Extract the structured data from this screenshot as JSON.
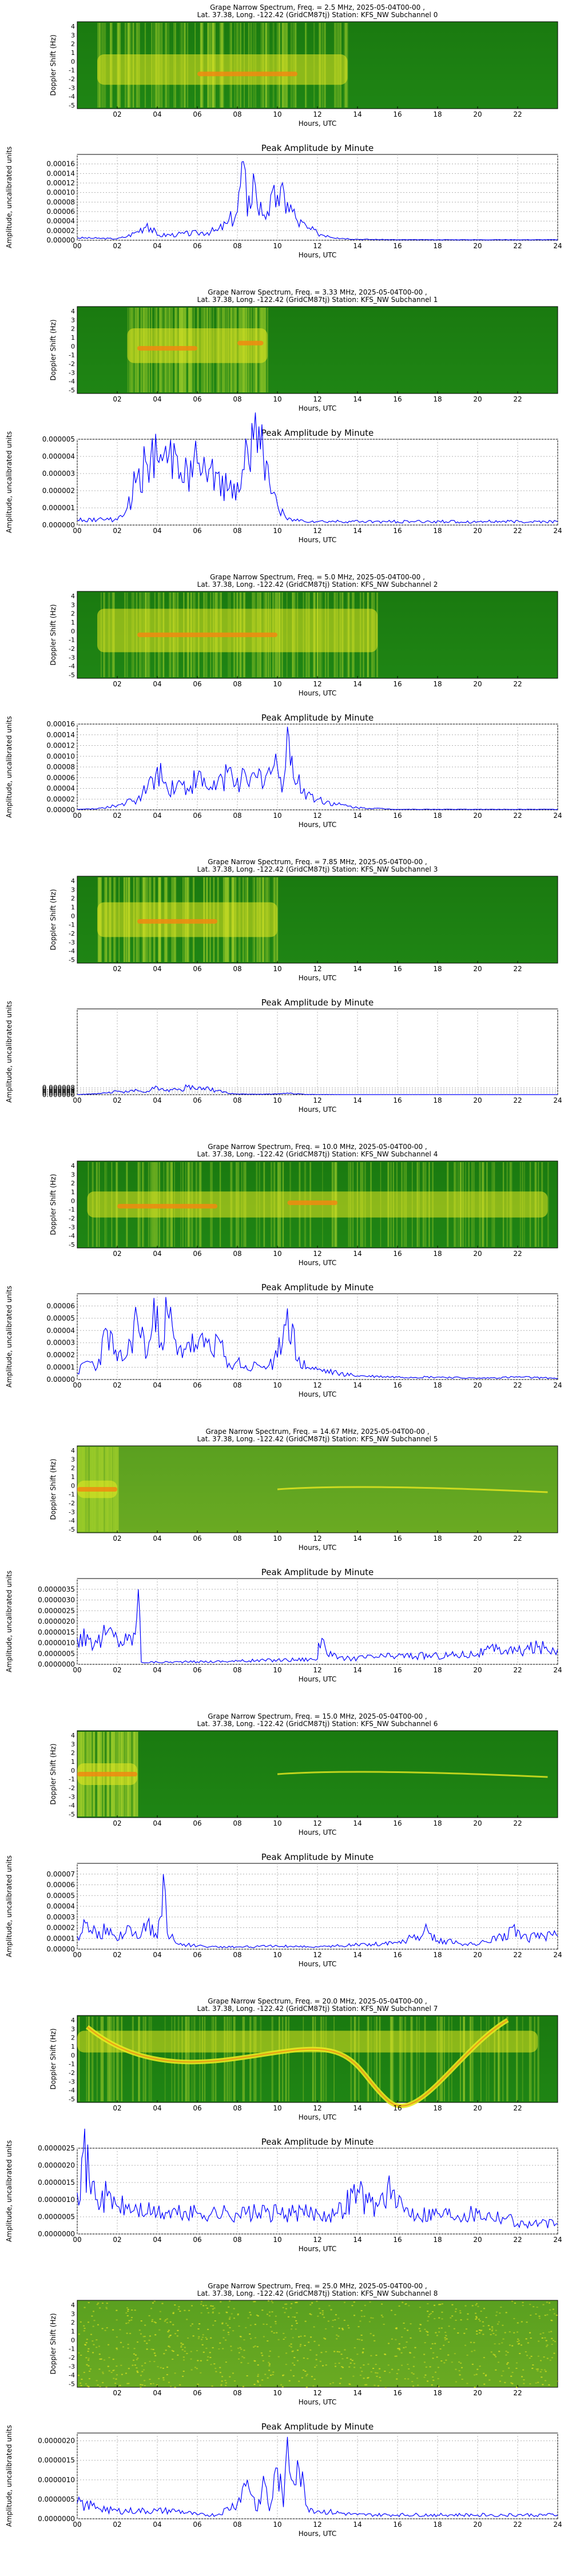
{
  "figure": {
    "spectrogram_title_template": "Grape Narrow Spectrum, Freq. = {freq}, 2025-05-04T00-00 ,",
    "spectrogram_subtitle_template": "Lat.  37.38, Long. -122.42 (GridCM87tj) Station: KFS_NW Subchannel {sub}",
    "amplitude_title": "Peak Amplitude by Minute",
    "xlabel": "Hours, UTC",
    "spectrogram_ylabel": "Doppler Shift (Hz)",
    "amplitude_ylabel": "Amplitude, uncalibrated units",
    "spectrogram_xticks": [
      "02",
      "04",
      "06",
      "08",
      "10",
      "12",
      "14",
      "16",
      "18",
      "20",
      "22"
    ],
    "amplitude_xticks": [
      "00",
      "02",
      "04",
      "06",
      "08",
      "10",
      "12",
      "14",
      "16",
      "18",
      "20",
      "22",
      "24"
    ],
    "spectrogram_yticks": [
      "-5",
      "-4",
      "-3",
      "-2",
      "-1",
      "0",
      "1",
      "2",
      "3",
      "4"
    ],
    "colors": {
      "green": "#1d7f12",
      "yellow": "#e8e820",
      "orange": "#f08a10",
      "line": "#0000ff",
      "grid": "#b0b0b0"
    }
  },
  "panels": [
    {
      "title": "Grape Narrow Spectrum, Freq. = 2.5 MHz, 2025-05-04T00-00 ,",
      "subtitle": "Lat.  37.38, Long. -122.42 (GridCM87tj) Station: KFS_NW Subchannel 0"
    },
    {
      "title": "Grape Narrow Spectrum, Freq. = 3.33 MHz, 2025-05-04T00-00 ,",
      "subtitle": "Lat.  37.38, Long. -122.42 (GridCM87tj) Station: KFS_NW Subchannel 1"
    },
    {
      "title": "Grape Narrow Spectrum, Freq. = 5.0 MHz, 2025-05-04T00-00 ,",
      "subtitle": "Lat.  37.38, Long. -122.42 (GridCM87tj) Station: KFS_NW Subchannel 2"
    },
    {
      "title": "Grape Narrow Spectrum, Freq. = 7.85 MHz, 2025-05-04T00-00 ,",
      "subtitle": "Lat.  37.38, Long. -122.42 (GridCM87tj) Station: KFS_NW Subchannel 3"
    },
    {
      "title": "Grape Narrow Spectrum, Freq. = 10.0 MHz, 2025-05-04T00-00 ,",
      "subtitle": "Lat.  37.38, Long. -122.42 (GridCM87tj) Station: KFS_NW Subchannel 4"
    },
    {
      "title": "Grape Narrow Spectrum, Freq. = 14.67 MHz, 2025-05-04T00-00 ,",
      "subtitle": "Lat.  37.38, Long. -122.42 (GridCM87tj) Station: KFS_NW Subchannel 5"
    },
    {
      "title": "Grape Narrow Spectrum, Freq. = 15.0 MHz, 2025-05-04T00-00 ,",
      "subtitle": "Lat.  37.38, Long. -122.42 (GridCM87tj) Station: KFS_NW Subchannel 6"
    },
    {
      "title": "Grape Narrow Spectrum, Freq. = 20.0 MHz, 2025-05-04T00-00 ,",
      "subtitle": "Lat.  37.38, Long. -122.42 (GridCM87tj) Station: KFS_NW Subchannel 7"
    },
    {
      "title": "Grape Narrow Spectrum, Freq. = 25.0 MHz, 2025-05-04T00-00 ,",
      "subtitle": "Lat.  37.38, Long. -122.42 (GridCM87tj) Station: KFS_NW Subchannel 8"
    }
  ],
  "chart_data": [
    {
      "type": "line",
      "title": "Peak Amplitude by Minute",
      "xlabel": "Hours, UTC",
      "ylabel": "Amplitude, uncalibrated units",
      "xlim": [
        0,
        24
      ],
      "ylim": [
        0,
        0.00018
      ],
      "yticks": [
        "0.00000",
        "0.00002",
        "0.00004",
        "0.00006",
        "0.00008",
        "0.00010",
        "0.00012",
        "0.00014",
        "0.00016"
      ],
      "x": [
        0,
        1,
        2,
        2.5,
        3,
        3.5,
        4,
        5,
        6,
        7,
        7.5,
        8,
        8.3,
        8.5,
        8.8,
        9,
        9.5,
        10,
        10.5,
        11,
        11.5,
        12,
        12.5,
        13,
        14,
        16,
        18,
        20,
        22,
        24
      ],
      "y": [
        5e-06,
        4e-06,
        3e-06,
        8e-06,
        1.8e-05,
        3.5e-05,
        1e-05,
        1.2e-05,
        1.5e-05,
        2e-05,
        3.5e-05,
        6e-05,
        0.000165,
        5e-05,
        0.00014,
        7e-05,
        6e-05,
        9.5e-05,
        8e-05,
        4e-05,
        2.5e-05,
        1.5e-05,
        1e-05,
        5e-06,
        2e-06,
        1e-06,
        1e-06,
        1e-06,
        1e-06,
        1e-06
      ]
    },
    {
      "type": "line",
      "title": "Peak Amplitude by Minute",
      "xlabel": "Hours, UTC",
      "ylabel": "Amplitude, uncalibrated units",
      "xlim": [
        0,
        24
      ],
      "ylim": [
        0,
        5e-06
      ],
      "yticks": [
        "0.000000",
        "0.000001",
        "0.000002",
        "0.000003",
        "0.000004",
        "0.000005"
      ],
      "x": [
        0,
        1,
        2,
        2.5,
        3,
        3.5,
        4,
        4.5,
        5,
        5.5,
        6,
        6.5,
        7,
        7.5,
        8,
        8.5,
        8.8,
        9,
        9.3,
        9.6,
        10,
        10.5,
        12,
        16,
        20,
        24
      ],
      "y": [
        3e-07,
        3e-07,
        3e-07,
        1e-06,
        2.8e-06,
        3.5e-06,
        3.8e-06,
        3.6e-06,
        4e-06,
        3.3e-06,
        3.6e-06,
        2.5e-06,
        3e-06,
        2e-06,
        2.5e-06,
        4.5e-06,
        5e-06,
        4.2e-06,
        4e-06,
        2.5e-06,
        1.2e-06,
        3e-07,
        2e-07,
        2e-07,
        2e-07,
        2e-07
      ]
    },
    {
      "type": "line",
      "title": "Peak Amplitude by Minute",
      "xlabel": "Hours, UTC",
      "ylabel": "Amplitude, uncalibrated units",
      "xlim": [
        0,
        24
      ],
      "ylim": [
        0,
        0.00016
      ],
      "yticks": [
        "0.00000",
        "0.00002",
        "0.00004",
        "0.00006",
        "0.00008",
        "0.00010",
        "0.00012",
        "0.00014",
        "0.00016"
      ],
      "x": [
        0,
        1,
        2,
        3,
        3.5,
        4,
        4.5,
        5,
        5.5,
        6,
        6.5,
        7,
        7.5,
        8,
        8.5,
        9,
        9.5,
        10,
        10.3,
        10.5,
        10.8,
        11,
        11.5,
        12,
        13,
        14,
        16,
        20,
        24
      ],
      "y": [
        1e-06,
        2e-06,
        8e-06,
        2e-05,
        4e-05,
        8e-05,
        4e-05,
        5e-05,
        4e-05,
        6e-05,
        4e-05,
        5e-05,
        7e-05,
        6e-05,
        5e-05,
        6e-05,
        7e-05,
        8e-05,
        5e-05,
        0.000155,
        6e-05,
        5e-05,
        3e-05,
        2e-05,
        1e-05,
        4e-06,
        1e-06,
        1e-06,
        1e-06
      ]
    },
    {
      "type": "line",
      "title": "Peak Amplitude by Minute",
      "xlabel": "Hours, UTC",
      "ylabel": "Amplitude, uncalibrated units",
      "xlim": [
        0,
        24
      ],
      "ylim": [
        0,
        0.0001
      ],
      "yticks": [
        "0.000000",
        "0.000002",
        "0.000004",
        "0.000006",
        "0.000008"
      ],
      "x": [
        0,
        1,
        1.5,
        2,
        2.5,
        3,
        3.5,
        4,
        4.5,
        5,
        5.5,
        6,
        6.3,
        6.6,
        7,
        7.5,
        8,
        9,
        10,
        10.5,
        11,
        11.5,
        12,
        14,
        16,
        20,
        24
      ],
      "y": [
        2e-07,
        1e-06,
        2e-06,
        4e-06,
        3e-06,
        5e-06,
        4e-06,
        9e-06,
        6e-06,
        5.5e-06,
        9e-06,
        6e-06,
        8e-06,
        6e-06,
        4.5e-06,
        2e-06,
        8e-07,
        5e-07,
        8e-07,
        2e-06,
        1e-06,
        3e-07,
        2e-07,
        1e-07,
        1e-07,
        1e-07,
        1e-07
      ]
    },
    {
      "type": "line",
      "title": "Peak Amplitude by Minute",
      "xlabel": "Hours, UTC",
      "ylabel": "Amplitude, uncalibrated units",
      "xlim": [
        0,
        24
      ],
      "ylim": [
        0,
        7e-05
      ],
      "yticks": [
        "0.00000",
        "0.00001",
        "0.00002",
        "0.00003",
        "0.00004",
        "0.00005",
        "0.00006"
      ],
      "x": [
        0,
        0.5,
        1,
        1.5,
        2,
        2.5,
        3,
        3.5,
        4,
        4.2,
        4.5,
        5,
        5.5,
        6,
        6.5,
        7,
        7.5,
        8,
        8.5,
        9,
        9.5,
        10,
        10.5,
        11,
        11.5,
        12,
        13,
        14,
        16,
        18,
        20,
        22,
        24
      ],
      "y": [
        5e-06,
        1.5e-05,
        1e-05,
        4e-05,
        1.5e-05,
        2e-05,
        5e-05,
        2e-05,
        6e-05,
        3e-05,
        5.5e-05,
        2e-05,
        3e-05,
        2.5e-05,
        3e-05,
        3.5e-05,
        1e-05,
        1.5e-05,
        8e-06,
        1.2e-05,
        1e-05,
        1.8e-05,
        5.8e-05,
        1.5e-05,
        1e-05,
        8e-06,
        5e-06,
        3e-06,
        2e-06,
        2e-06,
        1e-06,
        2e-06,
        1e-06
      ]
    },
    {
      "type": "line",
      "title": "Peak Amplitude by Minute",
      "xlabel": "Hours, UTC",
      "ylabel": "Amplitude, uncalibrated units",
      "xlim": [
        0,
        24
      ],
      "ylim": [
        0,
        4e-06
      ],
      "yticks": [
        "0.0000000",
        "0.0000005",
        "0.0000010",
        "0.0000015",
        "0.0000020",
        "0.0000025",
        "0.0000030",
        "0.0000035"
      ],
      "x": [
        0,
        0.5,
        1,
        1.5,
        2,
        2.5,
        2.9,
        3.05,
        3.2,
        4,
        6,
        8,
        10,
        12,
        12.05,
        13,
        14,
        16,
        18,
        20,
        21,
        22,
        23,
        24
      ],
      "y": [
        1.2e-06,
        1.4e-06,
        1e-06,
        1.5e-06,
        1.2e-06,
        1.1e-06,
        1.4e-06,
        3.5e-06,
        1e-07,
        1e-07,
        1.2e-07,
        1.5e-07,
        2e-07,
        2.5e-07,
        1e-06,
        2.5e-07,
        3e-07,
        4e-07,
        4e-07,
        5e-07,
        7e-07,
        6e-07,
        8e-07,
        7e-07
      ]
    },
    {
      "type": "line",
      "title": "Peak Amplitude by Minute",
      "xlabel": "Hours, UTC",
      "ylabel": "Amplitude, uncalibrated units",
      "xlim": [
        0,
        24
      ],
      "ylim": [
        0,
        8e-05
      ],
      "yticks": [
        "0.00000",
        "0.00001",
        "0.00002",
        "0.00003",
        "0.00004",
        "0.00005",
        "0.00006",
        "0.00007"
      ],
      "x": [
        0,
        0.5,
        1,
        1.5,
        2,
        2.5,
        3,
        3.5,
        4,
        4.3,
        4.5,
        5,
        6,
        7,
        8,
        10,
        12,
        14,
        16,
        17,
        17.5,
        18,
        19,
        20,
        21,
        22,
        22.5,
        23,
        24
      ],
      "y": [
        1.2e-05,
        2.5e-05,
        1e-05,
        2e-05,
        8e-06,
        2.2e-05,
        1e-05,
        2.5e-05,
        1e-05,
        7e-05,
        1.5e-05,
        5e-06,
        3e-06,
        2e-06,
        2e-06,
        3e-06,
        2e-06,
        4e-06,
        6e-06,
        1.2e-05,
        1.8e-05,
        8e-06,
        6e-06,
        4e-06,
        1.2e-05,
        1.8e-05,
        8e-06,
        1.5e-05,
        1.2e-05
      ]
    },
    {
      "type": "line",
      "title": "Peak Amplitude by Minute",
      "xlabel": "Hours, UTC",
      "ylabel": "Amplitude, uncalibrated units",
      "xlim": [
        0,
        24
      ],
      "ylim": [
        0,
        2.5e-06
      ],
      "yticks": [
        "0.0000000",
        "0.0000005",
        "0.0000010",
        "0.0000015",
        "0.0000020",
        "0.0000025"
      ],
      "x": [
        0,
        0.3,
        0.6,
        1,
        1.5,
        2,
        3,
        4,
        6,
        8,
        10,
        12,
        13,
        14,
        14.5,
        15,
        15.5,
        16,
        17,
        18,
        20,
        21.5,
        22,
        24
      ],
      "y": [
        1.2e-06,
        2.4e-06,
        1.6e-06,
        1e-06,
        1.1e-06,
        8e-07,
        7e-07,
        6e-07,
        6e-07,
        6e-07,
        6e-07,
        6e-07,
        6e-07,
        1.3e-06,
        9e-07,
        8e-07,
        1.4e-06,
        8e-07,
        6e-07,
        6e-07,
        6e-07,
        5e-07,
        3e-07,
        3e-07
      ]
    },
    {
      "type": "line",
      "title": "Peak Amplitude by Minute",
      "xlabel": "Hours, UTC",
      "ylabel": "Amplitude, uncalibrated units",
      "xlim": [
        0,
        24
      ],
      "ylim": [
        0,
        2.2e-06
      ],
      "yticks": [
        "0.0000000",
        "0.0000005",
        "0.0000010",
        "0.0000015",
        "0.0000020"
      ],
      "x": [
        0,
        1,
        2,
        3,
        4,
        5,
        6,
        7,
        8,
        8.5,
        9,
        9.3,
        9.6,
        10,
        10.3,
        10.5,
        10.7,
        11,
        11.5,
        12,
        14,
        16,
        18,
        20,
        22,
        24
      ],
      "y": [
        4e-07,
        3e-07,
        2e-07,
        2e-07,
        2e-07,
        2e-07,
        1e-07,
        1e-07,
        4e-07,
        1e-06,
        2e-07,
        1.1e-06,
        2e-07,
        1.3e-06,
        3e-07,
        2.1e-06,
        1e-06,
        1.5e-06,
        3e-07,
        2e-07,
        1e-07,
        1e-07,
        1e-07,
        1e-07,
        1e-07,
        1e-07
      ]
    }
  ]
}
